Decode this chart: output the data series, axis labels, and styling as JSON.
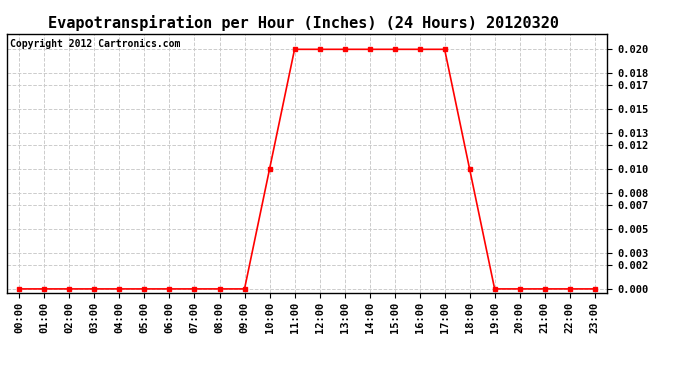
{
  "title": "Evapotranspiration per Hour (Inches) (24 Hours) 20120320",
  "copyright_text": "Copyright 2012 Cartronics.com",
  "hours": [
    "00:00",
    "01:00",
    "02:00",
    "03:00",
    "04:00",
    "05:00",
    "06:00",
    "07:00",
    "08:00",
    "09:00",
    "10:00",
    "11:00",
    "12:00",
    "13:00",
    "14:00",
    "15:00",
    "16:00",
    "17:00",
    "18:00",
    "19:00",
    "20:00",
    "21:00",
    "22:00",
    "23:00"
  ],
  "values": [
    0.0,
    0.0,
    0.0,
    0.0,
    0.0,
    0.0,
    0.0,
    0.0,
    0.0,
    0.0,
    0.01,
    0.02,
    0.02,
    0.02,
    0.02,
    0.02,
    0.02,
    0.02,
    0.01,
    0.0,
    0.0,
    0.0,
    0.0,
    0.0
  ],
  "line_color": "#FF0000",
  "marker": "s",
  "marker_size": 3,
  "background_color": "#FFFFFF",
  "plot_bg_color": "#FFFFFF",
  "grid_color": "#CCCCCC",
  "grid_style": "--",
  "yticks": [
    0.0,
    0.002,
    0.003,
    0.005,
    0.007,
    0.008,
    0.01,
    0.012,
    0.013,
    0.015,
    0.017,
    0.018,
    0.02
  ],
  "ylim": [
    -0.0003,
    0.0213
  ],
  "title_fontsize": 11,
  "tick_fontsize": 7.5,
  "copyright_fontsize": 7
}
